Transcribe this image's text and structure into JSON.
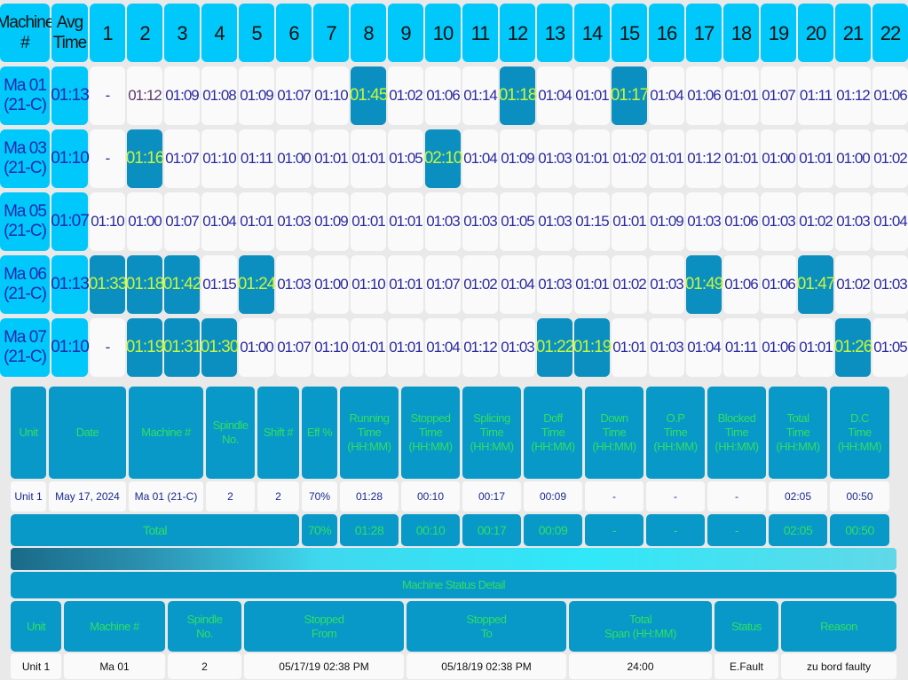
{
  "top_table": {
    "headers": {
      "machine": "Machine #",
      "machine_l1": "Machine",
      "machine_l2": "#",
      "avg_l1": "Avg",
      "avg_l2": "Time"
    },
    "days": [
      "1",
      "2",
      "3",
      "4",
      "5",
      "6",
      "7",
      "8",
      "9",
      "10",
      "11",
      "12",
      "13",
      "14",
      "15",
      "16",
      "17",
      "18",
      "19",
      "20",
      "21",
      "22"
    ],
    "rows": [
      {
        "machine_l1": "Ma 01",
        "machine_l2": "(21-C)",
        "avg": "01:13",
        "cells": [
          "-",
          "01:12",
          "01:09",
          "01:08",
          "01:09",
          "01:07",
          "01:10",
          "01:45",
          "01:02",
          "01:06",
          "01:14",
          "01:18",
          "01:04",
          "01:01",
          "01:17",
          "01:04",
          "01:06",
          "01:01",
          "01:07",
          "01:11",
          "01:12",
          "01:06"
        ],
        "highlighted": [
          8,
          12,
          15
        ]
      },
      {
        "machine_l1": "Ma 03",
        "machine_l2": "(21-C)",
        "avg": "01:10",
        "cells": [
          "-",
          "01:16",
          "01:07",
          "01:10",
          "01:11",
          "01:00",
          "01:01",
          "01:01",
          "01:05",
          "02:10",
          "01:04",
          "01:09",
          "01:03",
          "01:01",
          "01:02",
          "01:01",
          "01:12",
          "01:01",
          "01:00",
          "01:01",
          "01:00",
          "01:02"
        ],
        "highlighted": [
          2,
          10
        ]
      },
      {
        "machine_l1": "Ma 05",
        "machine_l2": "(21-C)",
        "avg": "01:07",
        "cells": [
          "01:10",
          "01:00",
          "01:07",
          "01:04",
          "01:01",
          "01:03",
          "01:09",
          "01:01",
          "01:01",
          "01:03",
          "01:03",
          "01:05",
          "01:03",
          "01:15",
          "01:01",
          "01:09",
          "01:03",
          "01:06",
          "01:03",
          "01:02",
          "01:03",
          "01:04"
        ],
        "highlighted": []
      },
      {
        "machine_l1": "Ma 06",
        "machine_l2": "(21-C)",
        "avg": "01:13",
        "cells": [
          "01:33",
          "01:18",
          "01:42",
          "01:15",
          "01:24",
          "01:03",
          "01:00",
          "01:10",
          "01:01",
          "01:07",
          "01:02",
          "01:04",
          "01:03",
          "01:01",
          "01:02",
          "01:03",
          "01:49",
          "01:06",
          "01:06",
          "01:47",
          "01:02",
          "01:03"
        ],
        "highlighted": [
          1,
          2,
          3,
          5,
          17,
          20
        ]
      },
      {
        "machine_l1": "Ma 07",
        "machine_l2": "(21-C)",
        "avg": "01:10",
        "cells": [
          "-",
          "01:19",
          "01:31",
          "01:30",
          "01:00",
          "01:07",
          "01:10",
          "01:01",
          "01:01",
          "01:04",
          "01:12",
          "01:03",
          "01:22",
          "01:19",
          "01:01",
          "01:03",
          "01:04",
          "01:11",
          "01:06",
          "01:01",
          "01:26",
          "01:05"
        ],
        "highlighted": [
          2,
          3,
          4,
          13,
          14,
          21
        ]
      }
    ]
  },
  "summary": {
    "headers": [
      [
        "Unit"
      ],
      [
        "Date"
      ],
      [
        "Machine #"
      ],
      [
        "Spindle",
        "No."
      ],
      [
        "Shift #"
      ],
      [
        "Eff %"
      ],
      [
        "Running",
        "Time",
        "(HH:MM)"
      ],
      [
        "Stopped",
        "Time",
        "(HH:MM)"
      ],
      [
        "Splicing",
        "Time",
        "(HH:MM)"
      ],
      [
        "Doff",
        "Time",
        "(HH:MM)"
      ],
      [
        "Down",
        "Time",
        "(HH:MM)"
      ],
      [
        "O.P",
        "Time",
        "(HH:MM)"
      ],
      [
        "Blocked",
        "Time",
        "(HH:MM)"
      ],
      [
        "Total",
        "Time",
        "(HH:MM)"
      ],
      [
        "D.C",
        "Time",
        "(HH:MM)"
      ]
    ],
    "row": [
      "Unit 1",
      "May 17, 2024",
      "Ma 01 (21-C)",
      "2",
      "2",
      "70%",
      "01:28",
      "00:10",
      "00:17",
      "00:09",
      "-",
      "-",
      "-",
      "02:05",
      "00:50"
    ],
    "total_label": "Total",
    "totals": [
      "70%",
      "01:28",
      "00:10",
      "00:17",
      "00:09",
      "-",
      "-",
      "-",
      "02:05",
      "00:50"
    ]
  },
  "status_detail": {
    "title": "Machine Status Detail",
    "headers": [
      [
        "Unit"
      ],
      [
        "Machine #"
      ],
      [
        "Spindle",
        "No."
      ],
      [
        "Stopped",
        "From"
      ],
      [
        "Stopped",
        "To"
      ],
      [
        "Total",
        "Span (HH:MM)"
      ],
      [
        "Status"
      ],
      [
        "Reason"
      ]
    ],
    "row": [
      "Unit 1",
      "Ma 01",
      "2",
      "05/17/19 02:38 PM",
      "05/18/19 02:38 PM",
      "24:00",
      "E.Fault",
      "zu bord faulty"
    ]
  },
  "colors": {
    "header_cyan": "#00c8fa",
    "highlight": "#0a8fc0",
    "highlight_text": "#c8f53a",
    "section_header": "#0899c8",
    "section_header_text": "#2ee060"
  }
}
